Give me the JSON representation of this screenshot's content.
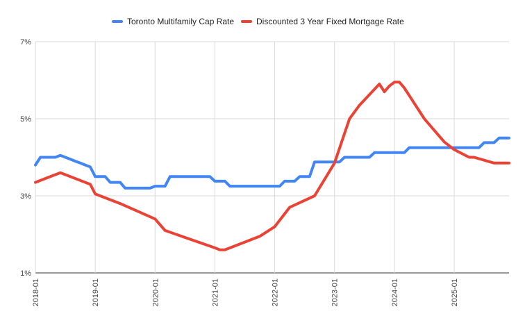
{
  "chart_data": {
    "type": "line",
    "x_type": "date",
    "x_range": [
      "2018-01",
      "2025-12"
    ],
    "x_ticks": [
      "2018-01",
      "2019-01",
      "2020-01",
      "2021-01",
      "2022-01",
      "2023-01",
      "2024-01",
      "2025-01"
    ],
    "ylim": [
      1,
      7
    ],
    "y_ticks": [
      {
        "value": 1,
        "label": "1%"
      },
      {
        "value": 3,
        "label": "3%"
      },
      {
        "value": 5,
        "label": "5%"
      },
      {
        "value": 7,
        "label": "7%"
      }
    ],
    "grid": {
      "horizontal": true,
      "vertical": true
    },
    "legend_position": "top",
    "series": [
      {
        "name": "Toronto Multifamily Cap Rate",
        "color": "#4285f4",
        "points": [
          [
            "2018-01",
            3.8
          ],
          [
            "2018-02",
            4.0
          ],
          [
            "2018-03",
            4.0
          ],
          [
            "2018-04",
            4.0
          ],
          [
            "2018-05",
            4.0
          ],
          [
            "2018-06",
            4.05
          ],
          [
            "2018-07",
            4.0
          ],
          [
            "2018-08",
            3.95
          ],
          [
            "2018-09",
            3.9
          ],
          [
            "2018-10",
            3.85
          ],
          [
            "2018-11",
            3.8
          ],
          [
            "2018-12",
            3.75
          ],
          [
            "2019-01",
            3.5
          ],
          [
            "2019-02",
            3.5
          ],
          [
            "2019-03",
            3.5
          ],
          [
            "2019-04",
            3.35
          ],
          [
            "2019-05",
            3.35
          ],
          [
            "2019-06",
            3.35
          ],
          [
            "2019-07",
            3.2
          ],
          [
            "2019-08",
            3.2
          ],
          [
            "2019-09",
            3.2
          ],
          [
            "2019-10",
            3.2
          ],
          [
            "2019-11",
            3.2
          ],
          [
            "2019-12",
            3.2
          ],
          [
            "2020-01",
            3.25
          ],
          [
            "2020-02",
            3.25
          ],
          [
            "2020-03",
            3.25
          ],
          [
            "2020-04",
            3.5
          ],
          [
            "2020-05",
            3.5
          ],
          [
            "2020-06",
            3.5
          ],
          [
            "2020-07",
            3.5
          ],
          [
            "2020-08",
            3.5
          ],
          [
            "2020-09",
            3.5
          ],
          [
            "2020-10",
            3.5
          ],
          [
            "2020-11",
            3.5
          ],
          [
            "2020-12",
            3.5
          ],
          [
            "2021-01",
            3.38
          ],
          [
            "2021-02",
            3.38
          ],
          [
            "2021-03",
            3.38
          ],
          [
            "2021-04",
            3.25
          ],
          [
            "2021-05",
            3.25
          ],
          [
            "2021-06",
            3.25
          ],
          [
            "2021-07",
            3.25
          ],
          [
            "2021-08",
            3.25
          ],
          [
            "2021-09",
            3.25
          ],
          [
            "2021-10",
            3.25
          ],
          [
            "2021-11",
            3.25
          ],
          [
            "2021-12",
            3.25
          ],
          [
            "2022-01",
            3.25
          ],
          [
            "2022-02",
            3.25
          ],
          [
            "2022-03",
            3.38
          ],
          [
            "2022-04",
            3.38
          ],
          [
            "2022-05",
            3.38
          ],
          [
            "2022-06",
            3.5
          ],
          [
            "2022-07",
            3.5
          ],
          [
            "2022-08",
            3.5
          ],
          [
            "2022-09",
            3.88
          ],
          [
            "2022-10",
            3.88
          ],
          [
            "2022-11",
            3.88
          ],
          [
            "2022-12",
            3.88
          ],
          [
            "2023-01",
            3.88
          ],
          [
            "2023-02",
            3.88
          ],
          [
            "2023-03",
            4.0
          ],
          [
            "2023-04",
            4.0
          ],
          [
            "2023-05",
            4.0
          ],
          [
            "2023-06",
            4.0
          ],
          [
            "2023-07",
            4.0
          ],
          [
            "2023-08",
            4.0
          ],
          [
            "2023-09",
            4.12
          ],
          [
            "2023-10",
            4.12
          ],
          [
            "2023-11",
            4.12
          ],
          [
            "2023-12",
            4.12
          ],
          [
            "2024-01",
            4.12
          ],
          [
            "2024-02",
            4.12
          ],
          [
            "2024-03",
            4.12
          ],
          [
            "2024-04",
            4.25
          ],
          [
            "2024-05",
            4.25
          ],
          [
            "2024-06",
            4.25
          ],
          [
            "2024-07",
            4.25
          ],
          [
            "2024-08",
            4.25
          ],
          [
            "2024-09",
            4.25
          ],
          [
            "2024-10",
            4.25
          ],
          [
            "2024-11",
            4.25
          ],
          [
            "2024-12",
            4.25
          ],
          [
            "2025-01",
            4.25
          ],
          [
            "2025-02",
            4.25
          ],
          [
            "2025-03",
            4.25
          ],
          [
            "2025-04",
            4.25
          ],
          [
            "2025-05",
            4.25
          ],
          [
            "2025-06",
            4.25
          ],
          [
            "2025-07",
            4.38
          ],
          [
            "2025-08",
            4.38
          ],
          [
            "2025-09",
            4.38
          ],
          [
            "2025-10",
            4.5
          ],
          [
            "2025-11",
            4.5
          ],
          [
            "2025-12",
            4.5
          ]
        ]
      },
      {
        "name": "Discounted 3 Year Fixed Mortgage Rate",
        "color": "#ea4335",
        "points": [
          [
            "2018-01",
            3.35
          ],
          [
            "2018-06",
            3.6
          ],
          [
            "2018-12",
            3.3
          ],
          [
            "2019-01",
            3.05
          ],
          [
            "2019-06",
            2.8
          ],
          [
            "2020-01",
            2.4
          ],
          [
            "2020-03",
            2.1
          ],
          [
            "2021-01",
            1.65
          ],
          [
            "2021-02",
            1.6
          ],
          [
            "2021-03",
            1.6
          ],
          [
            "2021-10",
            1.95
          ],
          [
            "2022-01",
            2.2
          ],
          [
            "2022-04",
            2.7
          ],
          [
            "2022-09",
            3.0
          ],
          [
            "2023-01",
            3.85
          ],
          [
            "2023-04",
            5.0
          ],
          [
            "2023-06",
            5.35
          ],
          [
            "2023-10",
            5.9
          ],
          [
            "2023-11",
            5.7
          ],
          [
            "2023-12",
            5.85
          ],
          [
            "2024-01",
            5.95
          ],
          [
            "2024-02",
            5.95
          ],
          [
            "2024-03",
            5.8
          ],
          [
            "2024-04",
            5.6
          ],
          [
            "2024-07",
            5.0
          ],
          [
            "2024-11",
            4.4
          ],
          [
            "2025-01",
            4.2
          ],
          [
            "2025-04",
            4.0
          ],
          [
            "2025-05",
            4.0
          ],
          [
            "2025-09",
            3.85
          ],
          [
            "2025-10",
            3.85
          ],
          [
            "2025-11",
            3.85
          ],
          [
            "2025-12",
            3.85
          ]
        ]
      }
    ]
  }
}
